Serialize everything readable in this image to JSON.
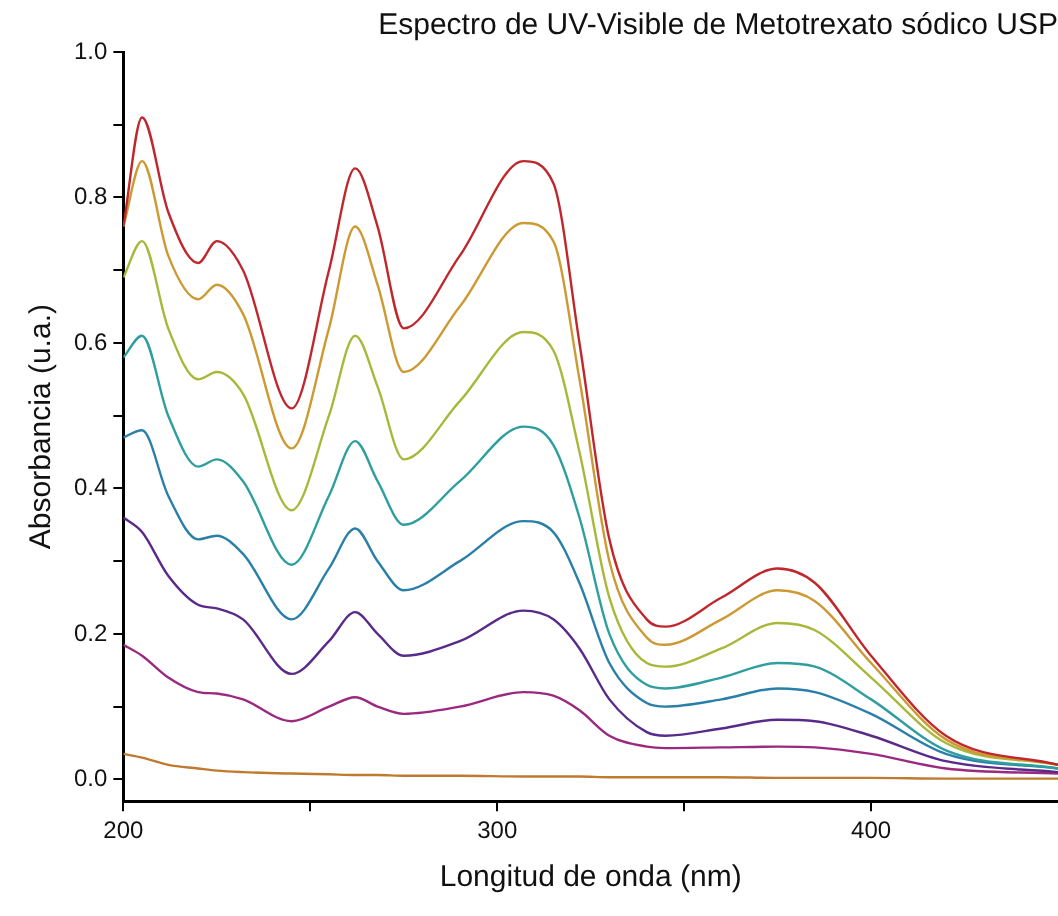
{
  "chart_data": {
    "type": "line",
    "title": "Espectro de UV-Visible de Metotrexato sódico USP",
    "xlabel": "Longitud de onda (nm)",
    "ylabel": "Absorbancia (u.a.)",
    "x": [
      200,
      205,
      212,
      220,
      225,
      232,
      245,
      255,
      262,
      268,
      275,
      290,
      307,
      315,
      322,
      330,
      340,
      345,
      360,
      375,
      385,
      400,
      420,
      450
    ],
    "series": [
      {
        "color": "#c0272d",
        "values": [
          0.76,
          0.91,
          0.78,
          0.71,
          0.74,
          0.7,
          0.51,
          0.7,
          0.84,
          0.76,
          0.62,
          0.72,
          0.85,
          0.82,
          0.6,
          0.33,
          0.22,
          0.21,
          0.25,
          0.29,
          0.27,
          0.17,
          0.06,
          0.02
        ]
      },
      {
        "color": "#cc9933",
        "values": [
          0.76,
          0.85,
          0.72,
          0.66,
          0.68,
          0.64,
          0.455,
          0.62,
          0.76,
          0.68,
          0.56,
          0.65,
          0.765,
          0.74,
          0.55,
          0.3,
          0.195,
          0.185,
          0.22,
          0.26,
          0.245,
          0.16,
          0.055,
          0.02
        ]
      },
      {
        "color": "#a8b83a",
        "values": [
          0.69,
          0.74,
          0.62,
          0.55,
          0.56,
          0.53,
          0.37,
          0.5,
          0.61,
          0.54,
          0.44,
          0.52,
          0.615,
          0.59,
          0.45,
          0.25,
          0.16,
          0.155,
          0.18,
          0.215,
          0.205,
          0.14,
          0.05,
          0.02
        ]
      },
      {
        "color": "#2e9e9e",
        "values": [
          0.58,
          0.61,
          0.5,
          0.43,
          0.44,
          0.41,
          0.295,
          0.39,
          0.465,
          0.41,
          0.35,
          0.41,
          0.485,
          0.46,
          0.36,
          0.2,
          0.13,
          0.125,
          0.14,
          0.16,
          0.155,
          0.11,
          0.04,
          0.015
        ]
      },
      {
        "color": "#2a7fa8",
        "values": [
          0.47,
          0.48,
          0.39,
          0.33,
          0.335,
          0.31,
          0.22,
          0.29,
          0.345,
          0.3,
          0.26,
          0.3,
          0.355,
          0.34,
          0.27,
          0.16,
          0.105,
          0.1,
          0.11,
          0.125,
          0.12,
          0.09,
          0.035,
          0.015
        ]
      },
      {
        "color": "#5a2a8a",
        "values": [
          0.36,
          0.34,
          0.28,
          0.24,
          0.235,
          0.22,
          0.145,
          0.19,
          0.23,
          0.2,
          0.17,
          0.19,
          0.232,
          0.22,
          0.18,
          0.11,
          0.065,
          0.06,
          0.07,
          0.082,
          0.08,
          0.06,
          0.025,
          0.01
        ]
      },
      {
        "color": "#9a2a80",
        "values": [
          0.185,
          0.17,
          0.14,
          0.12,
          0.118,
          0.11,
          0.08,
          0.1,
          0.113,
          0.1,
          0.09,
          0.1,
          0.12,
          0.115,
          0.095,
          0.06,
          0.045,
          0.043,
          0.044,
          0.045,
          0.044,
          0.035,
          0.015,
          0.008
        ]
      },
      {
        "color": "#c07a30",
        "values": [
          0.035,
          0.03,
          0.02,
          0.015,
          0.012,
          0.01,
          0.008,
          0.007,
          0.006,
          0.006,
          0.005,
          0.005,
          0.004,
          0.004,
          0.004,
          0.003,
          0.003,
          0.003,
          0.003,
          0.002,
          0.002,
          0.002,
          0.001,
          0.001
        ]
      }
    ],
    "xlim": [
      200,
      450
    ],
    "xticks": [
      200,
      {
        "value": 250,
        "label": null
      },
      300,
      {
        "value": 350,
        "label": null
      },
      400
    ],
    "ylim": [
      -0.03,
      1.0
    ],
    "yticks": [
      {
        "value": 0,
        "label": "0.0"
      },
      {
        "value": 0.1,
        "label": null
      },
      0.2,
      {
        "value": 0.3,
        "label": null
      },
      0.4,
      {
        "value": 0.5,
        "label": null
      },
      0.6,
      {
        "value": 0.7,
        "label": null
      },
      0.8,
      {
        "value": 0.9,
        "label": null
      },
      {
        "value": 1,
        "label": "1.0"
      }
    ],
    "grid": false,
    "legend": false,
    "marker": "none",
    "line_style": "solid"
  }
}
